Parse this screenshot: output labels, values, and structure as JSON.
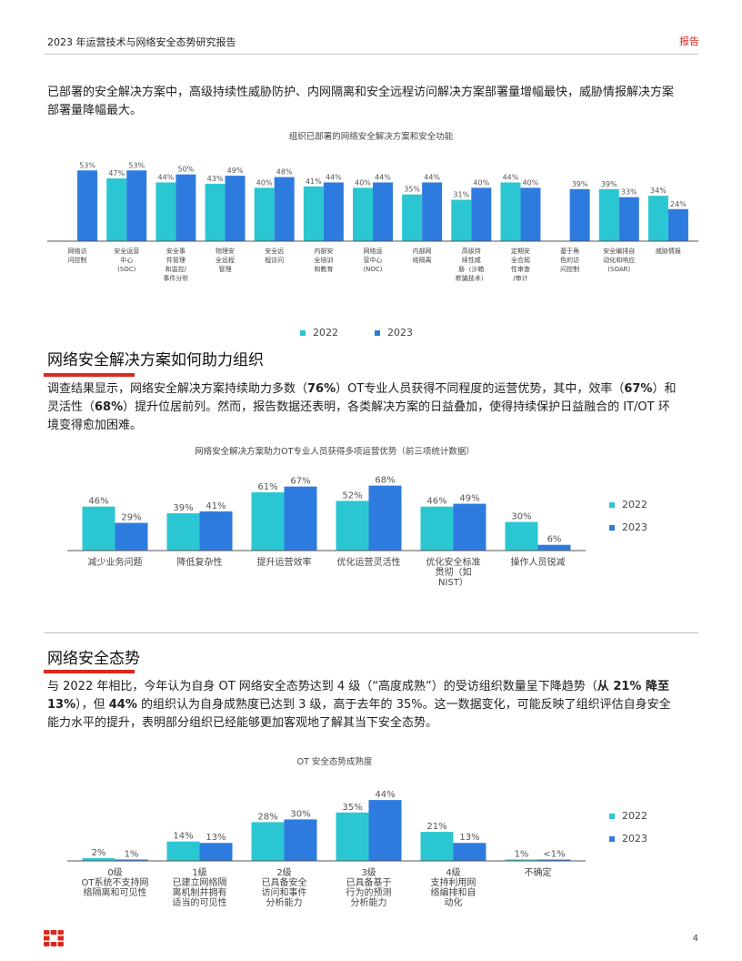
{
  "header": {
    "title": "2023 年运营技术与网络安全态势研究报告",
    "tag": "报告"
  },
  "colors": {
    "y2022": "#2ac7d3",
    "y2023": "#2e7be0",
    "accent": "#da291c"
  },
  "intro": {
    "text": "已部署的安全解决方案中，高级持续性威胁防护、内网隔离和安全远程访问解决方案部署量增幅最快，威胁情报解决方案部署量降幅最大。"
  },
  "section2": {
    "title": "网络安全解决方案如何助力组织",
    "p_a": "调查结果显示，网络安全解决方案持续助力多数（",
    "b1": "76%",
    "p_b": "）OT专业人员获得不同程度的运营优势，其中，效率（",
    "b2": "67%",
    "p_c": "）和灵活性（",
    "b3": "68%",
    "p_d": "）提升位居前列。然而，报告数据还表明，各类解决方案的日益叠加，使得持续保护日益融合的 IT/OT 环境变得愈加困难。"
  },
  "section3": {
    "title": "网络安全态势",
    "p_a": "与 2022 年相比，今年认为自身 OT 网络安全态势达到 4 级（“高度成熟”）的受访组织数量呈下降趋势（",
    "b1": "从 21% 降至 13%",
    "p_b": "），但 ",
    "b2": "44%",
    "p_c": " 的组织认为自身成熟度已达到 3 级，高于去年的 35%。这一数据变化，可能反映了组织评估自身安全能力水平的提升，表明部分组织已经能够更加客观地了解其当下安全态势。"
  },
  "legend": {
    "y2022": "2022",
    "y2023": "2023"
  },
  "chart_data": [
    {
      "type": "bar",
      "title": "组织已部署的网络安全解决方案和安全功能",
      "categories": [
        [
          "网络访",
          "问控制"
        ],
        [
          "安全运营",
          "中心",
          "(SOC)"
        ],
        [
          "安全事",
          "件管理",
          "和监控/",
          "事件分析"
        ],
        [
          "物理安",
          "全远程",
          "管理"
        ],
        [
          "安全远",
          "程访问"
        ],
        [
          "内部安",
          "全培训",
          "和教育"
        ],
        [
          "网络运",
          "营中心",
          "(NOC)"
        ],
        [
          "内部网",
          "络隔离"
        ],
        [
          "高级持",
          "续性威",
          "胁（沙箱",
          "欺骗技术）"
        ],
        [
          "定期安",
          "全合规",
          "性审查",
          "/审计"
        ],
        [
          "基于角",
          "色的访",
          "问控制"
        ],
        [
          "安全编排自",
          "动化和响应",
          "(SOAR)"
        ],
        [
          "威胁情报"
        ]
      ],
      "series": [
        {
          "name": "2022",
          "values": [
            null,
            47,
            44,
            43,
            40,
            41,
            40,
            35,
            31,
            44,
            null,
            39,
            34
          ],
          "labels": [
            "",
            "47%",
            "44%",
            "43%",
            "40%",
            "41%",
            "40%",
            "35%",
            "31%",
            "44%",
            "",
            "39%",
            "34%"
          ]
        },
        {
          "name": "2023",
          "values": [
            53,
            53,
            50,
            49,
            48,
            44,
            44,
            44,
            40,
            40,
            39,
            33,
            24
          ],
          "labels": [
            "53%",
            "53%",
            "50%",
            "49%",
            "48%",
            "44%",
            "44%",
            "44%",
            "40%",
            "40%",
            "39%",
            "33%",
            "24%"
          ]
        }
      ],
      "ylim": [
        0,
        60
      ],
      "legend": "bottom"
    },
    {
      "type": "bar",
      "title": "网络安全解决方案助力OT专业人员获得多项运营优势（前三项统计数据）",
      "categories": [
        [
          "减少业务问题"
        ],
        [
          "降低复杂性"
        ],
        [
          "提升运营效率"
        ],
        [
          "优化运营灵活性"
        ],
        [
          "优化安全标准",
          "贯彻（如",
          "NIST）"
        ],
        [
          "操作人员锐减"
        ]
      ],
      "series": [
        {
          "name": "2022",
          "values": [
            46,
            39,
            61,
            52,
            46,
            30
          ],
          "labels": [
            "46%",
            "39%",
            "61%",
            "52%",
            "46%",
            "30%"
          ]
        },
        {
          "name": "2023",
          "values": [
            29,
            41,
            67,
            68,
            49,
            6
          ],
          "labels": [
            "29%",
            "41%",
            "67%",
            "68%",
            "49%",
            "6%"
          ]
        }
      ],
      "ylim": [
        0,
        80
      ],
      "legend": "right"
    },
    {
      "type": "bar",
      "title": "OT 安全态势成熟度",
      "categories": [
        [
          "0级",
          "OT系统不支持网",
          "络隔离和可见性"
        ],
        [
          "1级",
          "已建立网络隔",
          "离机制并拥有",
          "适当的可见性"
        ],
        [
          "2级",
          "已具备安全",
          "访问和事件",
          "分析能力"
        ],
        [
          "3级",
          "已具备基于",
          "行为的预测",
          "分析能力"
        ],
        [
          "4级",
          "支持利用网",
          "络编排和自",
          "动化"
        ],
        [
          "不确定"
        ]
      ],
      "series": [
        {
          "name": "2022",
          "values": [
            2,
            14,
            28,
            35,
            21,
            1
          ],
          "labels": [
            "2%",
            "14%",
            "28%",
            "35%",
            "21%",
            "1%"
          ]
        },
        {
          "name": "2023",
          "values": [
            1,
            13,
            30,
            44,
            13,
            0.5
          ],
          "labels": [
            "1%",
            "13%",
            "30%",
            "44%",
            "13%",
            "<1%"
          ]
        }
      ],
      "ylim": [
        0,
        50
      ],
      "legend": "right"
    }
  ],
  "footer": {
    "page": "4"
  }
}
